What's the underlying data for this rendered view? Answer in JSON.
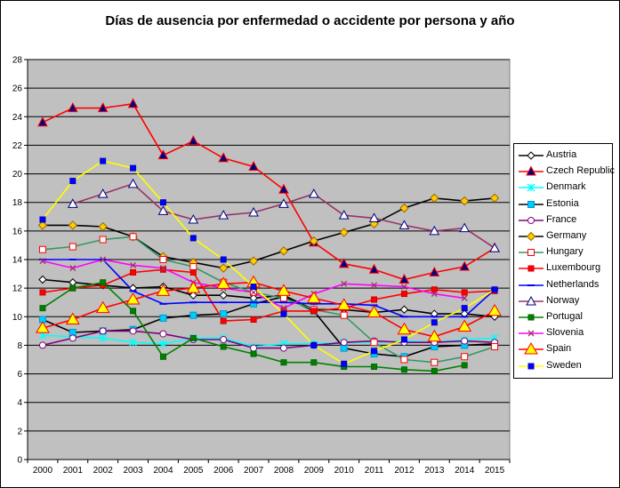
{
  "chart_data": {
    "type": "line",
    "title": "Días de ausencia por enfermedad o accidente por persona y año",
    "xlabel": "",
    "ylabel": "",
    "x": [
      "2000",
      "2001",
      "2002",
      "2003",
      "2004",
      "2005",
      "2006",
      "2007",
      "2008",
      "2009",
      "2010",
      "2011",
      "2012",
      "2013",
      "2014",
      "2015"
    ],
    "ylim": [
      0,
      28
    ],
    "yticks": [
      0,
      2,
      4,
      6,
      8,
      10,
      12,
      14,
      16,
      18,
      20,
      22,
      24,
      26,
      28
    ],
    "grid": true,
    "legend_position": "right",
    "series": [
      {
        "name": "Austria",
        "color": "#000000",
        "marker": "diamond-open",
        "values": [
          12.6,
          12.4,
          12.2,
          12.0,
          12.1,
          11.5,
          11.5,
          11.3,
          11.5,
          10.5,
          10.5,
          10.3,
          10.5,
          10.2,
          10.2,
          10.0
        ]
      },
      {
        "name": "Czech Republic",
        "color": "#ff0000",
        "marker": "triangle-navy",
        "values": [
          23.6,
          24.6,
          24.6,
          24.9,
          21.3,
          22.3,
          21.1,
          20.5,
          18.9,
          15.2,
          13.7,
          13.3,
          12.6,
          13.1,
          13.5,
          14.8
        ]
      },
      {
        "name": "Denmark",
        "color": "#00ffff",
        "marker": "star",
        "values": [
          8.7,
          8.6,
          8.5,
          8.2,
          8.1,
          8.5,
          8.5,
          7.9,
          8.1,
          8.1,
          8.2,
          8.2,
          8.3,
          8.2,
          8.4,
          8.5
        ]
      },
      {
        "name": "Estonia",
        "color": "#000000",
        "marker": "square-teal",
        "values": [
          9.8,
          8.9,
          9.0,
          9.1,
          9.9,
          10.1,
          10.2,
          10.9,
          11.4,
          10.4,
          7.8,
          7.4,
          7.2,
          7.9,
          8.0,
          8.1
        ]
      },
      {
        "name": "France",
        "color": "#800080",
        "marker": "circle-open",
        "values": [
          8.0,
          8.5,
          9.0,
          9.0,
          8.8,
          8.4,
          8.4,
          7.8,
          7.8,
          8.0,
          8.2,
          8.3,
          8.2,
          8.2,
          8.3,
          8.2
        ]
      },
      {
        "name": "Germany",
        "color": "#000000",
        "marker": "diamond-yellow",
        "values": [
          16.4,
          16.4,
          16.3,
          15.6,
          14.2,
          13.8,
          13.4,
          13.9,
          14.6,
          15.3,
          15.9,
          16.5,
          17.6,
          18.3,
          18.1,
          18.3
        ]
      },
      {
        "name": "Hungary",
        "color": "#339966",
        "marker": "square-open",
        "values": [
          14.7,
          14.9,
          15.4,
          15.6,
          14.0,
          13.5,
          12.4,
          11.7,
          11.3,
          10.5,
          10.1,
          8.2,
          7.0,
          6.8,
          7.2,
          7.9
        ]
      },
      {
        "name": "Luxembourg",
        "color": "#ff0000",
        "marker": "square-red",
        "values": [
          11.7,
          12.0,
          12.2,
          13.1,
          13.3,
          13.1,
          9.7,
          9.8,
          10.4,
          10.4,
          10.6,
          11.2,
          11.6,
          11.9,
          11.7,
          11.8
        ]
      },
      {
        "name": "Netherlands",
        "color": "#0000ff",
        "marker": "dash",
        "values": [
          14.0,
          14.0,
          14.0,
          11.8,
          10.9,
          11.0,
          11.0,
          11.0,
          11.0,
          10.9,
          10.9,
          10.8,
          10.0,
          10.0,
          10.0,
          11.9
        ]
      },
      {
        "name": "Norway",
        "color": "#993366",
        "marker": "triangle-open",
        "values": [
          null,
          17.9,
          18.6,
          19.3,
          17.4,
          16.8,
          17.1,
          17.3,
          17.9,
          18.6,
          17.1,
          16.9,
          16.4,
          16.0,
          16.2,
          14.8
        ]
      },
      {
        "name": "Portugal",
        "color": "#008000",
        "marker": "square-green",
        "values": [
          10.6,
          12.0,
          12.4,
          10.4,
          7.2,
          8.5,
          7.9,
          7.4,
          6.8,
          6.8,
          6.5,
          6.5,
          6.3,
          6.2,
          6.6,
          null
        ]
      },
      {
        "name": "Slovenia",
        "color": "#ff00ff",
        "marker": "asterisk",
        "values": [
          13.9,
          13.4,
          14.0,
          13.6,
          13.4,
          12.4,
          12.0,
          11.7,
          10.6,
          11.6,
          12.3,
          12.2,
          12.1,
          11.6,
          11.3,
          null
        ]
      },
      {
        "name": "Spain",
        "color": "#ff0000",
        "marker": "triangle-yellow",
        "values": [
          9.2,
          9.8,
          10.6,
          11.2,
          11.8,
          12.0,
          12.3,
          12.4,
          11.8,
          11.3,
          10.8,
          10.3,
          9.1,
          8.6,
          9.3,
          10.4
        ]
      },
      {
        "name": "Sweden",
        "color": "#ffff00",
        "marker": "square-blue",
        "values": [
          16.8,
          19.5,
          20.9,
          20.4,
          18.0,
          15.5,
          14.0,
          12.1,
          10.2,
          8.0,
          6.7,
          7.6,
          8.4,
          9.6,
          10.6,
          11.9
        ]
      }
    ]
  }
}
